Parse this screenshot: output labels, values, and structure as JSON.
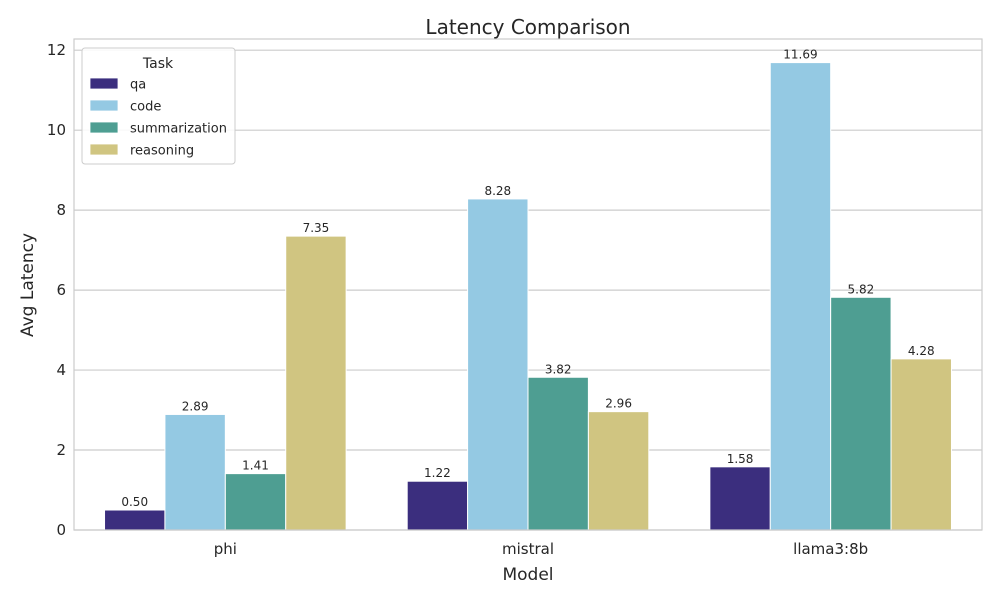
{
  "chart_data": {
    "type": "bar",
    "title": "Latency Comparison",
    "xlabel": "Model",
    "ylabel": "Avg Latency",
    "categories": [
      "phi",
      "mistral",
      "llama3:8b"
    ],
    "series": [
      {
        "name": "qa",
        "values": [
          0.5,
          1.22,
          1.58
        ],
        "color": "#3b2e7e"
      },
      {
        "name": "code",
        "values": [
          2.89,
          8.28,
          11.69
        ],
        "color": "#94c9e3"
      },
      {
        "name": "summarization",
        "values": [
          1.41,
          3.82,
          5.82
        ],
        "color": "#4e9e92"
      },
      {
        "name": "reasoning",
        "values": [
          7.35,
          2.96,
          4.28
        ],
        "color": "#d0c581"
      }
    ],
    "data_labels": [
      [
        "0.50",
        "1.22",
        "1.58"
      ],
      [
        "2.89",
        "8.28",
        "11.69"
      ],
      [
        "1.41",
        "3.82",
        "5.82"
      ],
      [
        "7.35",
        "2.96",
        "4.28"
      ]
    ],
    "ylim": [
      0,
      12.28
    ],
    "yticks": [
      "0",
      "2",
      "4",
      "6",
      "8",
      "10",
      "12"
    ],
    "grid": true,
    "legend": {
      "title": "Task",
      "position": "top-left"
    }
  }
}
